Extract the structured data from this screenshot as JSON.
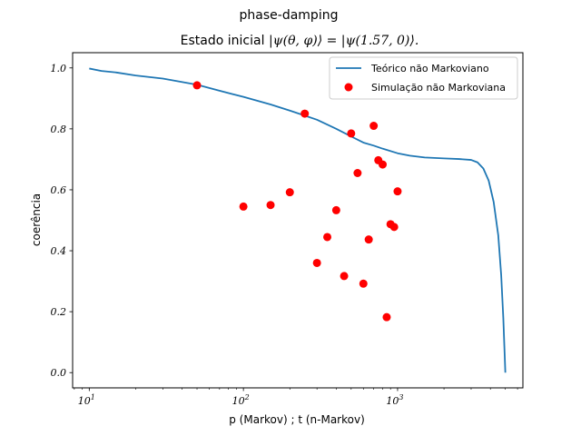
{
  "figure_title": "phase-damping",
  "chart_data": {
    "type": "line",
    "title_prefix": "Estado inicial ",
    "title_math": "|ψ(θ, φ)⟩ = |ψ(1.57, 0)⟩.",
    "xlabel": "p (Markov) ; t (n-Markov)",
    "ylabel": "coerência",
    "xscale": "log",
    "xlim": [
      7.8,
      6500
    ],
    "ylim": [
      -0.05,
      1.05
    ],
    "x_ticks": [
      {
        "value": 10,
        "label": "10",
        "exp": "1"
      },
      {
        "value": 100,
        "label": "10",
        "exp": "2"
      },
      {
        "value": 1000,
        "label": "10",
        "exp": "3"
      }
    ],
    "y_ticks": [
      0.0,
      0.2,
      0.4,
      0.6,
      0.8,
      1.0
    ],
    "y_tick_labels": [
      "0.0",
      "0.2",
      "0.4",
      "0.6",
      "0.8",
      "1.0"
    ],
    "grid": false,
    "legend_position": "top-right",
    "series": [
      {
        "name": "Teórico não Markoviano",
        "kind": "line",
        "color": "#1f77b4",
        "x": [
          10,
          12,
          15,
          20,
          30,
          50,
          70,
          100,
          150,
          200,
          300,
          400,
          500,
          600,
          700,
          800,
          1000,
          1200,
          1500,
          2000,
          2500,
          3000,
          3300,
          3600,
          3900,
          4200,
          4500,
          4700,
          4850,
          4950,
          5000
        ],
        "y": [
          0.998,
          0.99,
          0.985,
          0.975,
          0.965,
          0.945,
          0.925,
          0.905,
          0.88,
          0.86,
          0.83,
          0.8,
          0.775,
          0.755,
          0.745,
          0.735,
          0.72,
          0.712,
          0.706,
          0.703,
          0.701,
          0.698,
          0.69,
          0.67,
          0.63,
          0.56,
          0.45,
          0.32,
          0.18,
          0.06,
          0.0
        ]
      },
      {
        "name": "Simulação não Markoviana",
        "kind": "scatter",
        "color": "#ff0000",
        "x": [
          50,
          100,
          150,
          200,
          250,
          300,
          350,
          400,
          450,
          500,
          550,
          600,
          650,
          700,
          750,
          800,
          850,
          900,
          950,
          1000
        ],
        "y": [
          0.943,
          0.545,
          0.55,
          0.592,
          0.85,
          0.36,
          0.445,
          0.533,
          0.317,
          0.785,
          0.655,
          0.292,
          0.437,
          0.81,
          0.697,
          0.683,
          0.182,
          0.487,
          0.478,
          0.595
        ]
      }
    ]
  }
}
